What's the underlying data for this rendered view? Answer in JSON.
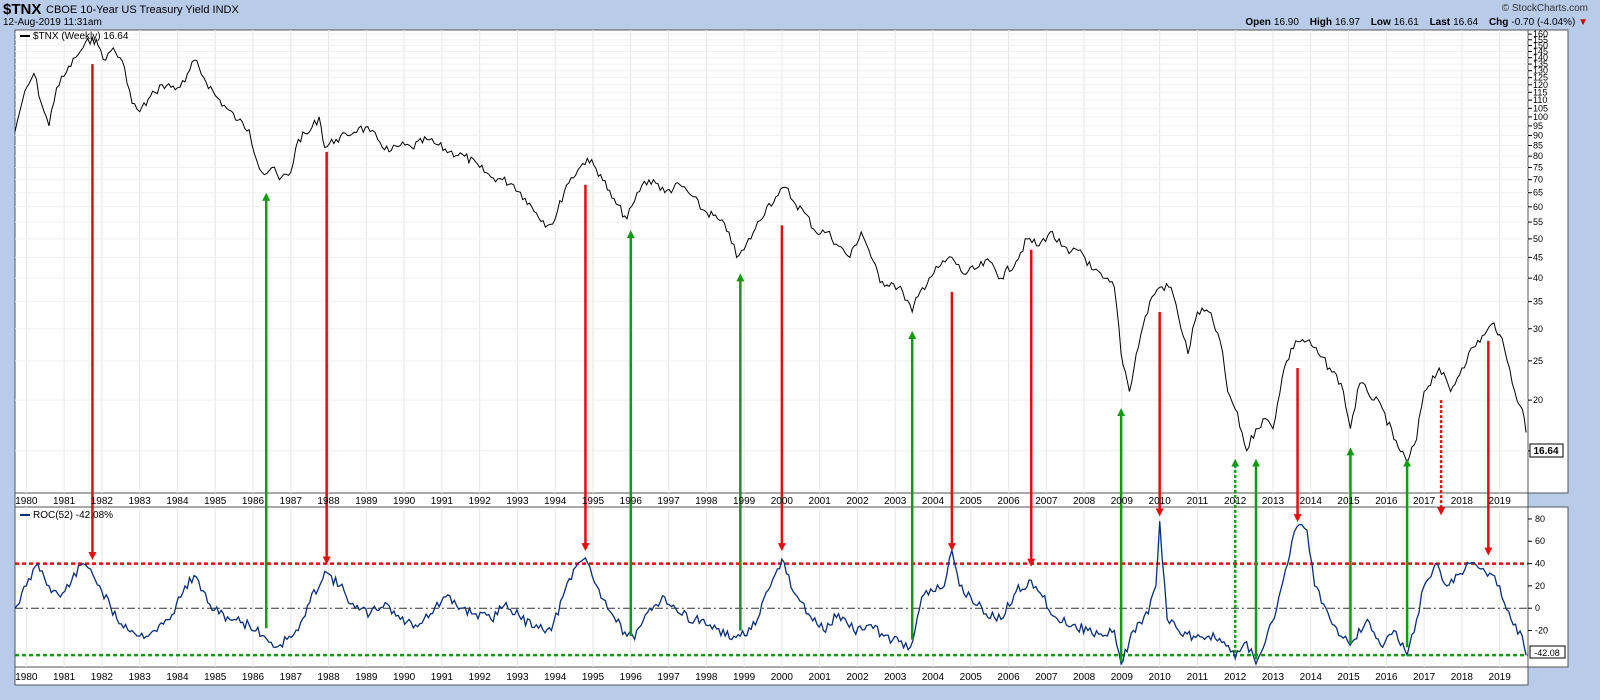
{
  "header": {
    "symbol": "$TNX",
    "name": "CBOE 10-Year US Treasury Yield",
    "exchange": "INDX",
    "date": "12-Aug-2019 11:31am",
    "brand": "© StockCharts.com",
    "open_label": "Open",
    "open": "16.90",
    "high_label": "High",
    "high": "16.97",
    "low_label": "Low",
    "low": "16.61",
    "last_label": "Last",
    "last": "16.64",
    "chg_label": "Chg",
    "chg": "-0.70 (-4.04%)",
    "chg_arrow": "▼"
  },
  "colors": {
    "price_line": "#000000",
    "roc_line": "#0a2e78",
    "red_arrow": "#e01010",
    "green_arrow": "#129a12",
    "upper_band": "#e01010",
    "lower_band": "#129a12"
  },
  "chart_data": [
    {
      "type": "line",
      "legend": "$TNX (Weekly) 16.64",
      "last_value_label": "16.64",
      "scale": "log",
      "ylim": [
        12,
        162
      ],
      "x_range": [
        1979.7,
        2019.75
      ],
      "yticks": [
        15,
        20,
        25,
        30,
        35,
        40,
        45,
        50,
        55,
        60,
        65,
        70,
        75,
        80,
        85,
        90,
        95,
        100,
        105,
        110,
        115,
        120,
        125,
        130,
        135,
        140,
        145,
        150,
        155,
        160
      ],
      "xtick_labels": [
        "1980",
        "1981",
        "1982",
        "1983",
        "1984",
        "1985",
        "1986",
        "1987",
        "1988",
        "1989",
        "1990",
        "1991",
        "1992",
        "1993",
        "1994",
        "1995",
        "1996",
        "1997",
        "1998",
        "1999",
        "2000",
        "2001",
        "2002",
        "2003",
        "2004",
        "2005",
        "2006",
        "2007",
        "2008",
        "2009",
        "2010",
        "2011",
        "2012",
        "2013",
        "2014",
        "2015",
        "2016",
        "2017",
        "2018",
        "2019"
      ],
      "series": [
        {
          "x": [
            1979.7,
            1979.9,
            1980.2,
            1980.4,
            1980.6,
            1980.8,
            1981.0,
            1981.3,
            1981.5,
            1981.75,
            1981.9,
            1982.1,
            1982.3,
            1982.6,
            1982.8,
            1983.0,
            1983.4,
            1983.6,
            1984.0,
            1984.2,
            1984.45,
            1984.7,
            1985.0,
            1985.3,
            1985.6,
            1985.9,
            1986.1,
            1986.3,
            1986.5,
            1986.7,
            1987.0,
            1987.2,
            1987.5,
            1987.75,
            1987.9,
            1988.2,
            1988.5,
            1988.8,
            1989.1,
            1989.3,
            1989.6,
            1989.9,
            1990.2,
            1990.6,
            1990.8,
            1991.2,
            1991.6,
            1992.0,
            1992.3,
            1992.6,
            1992.9,
            1993.2,
            1993.5,
            1993.8,
            1994.0,
            1994.3,
            1994.6,
            1994.85,
            1995.2,
            1995.5,
            1995.9,
            1996.1,
            1996.3,
            1996.6,
            1996.9,
            1997.3,
            1997.6,
            1997.9,
            1998.3,
            1998.6,
            1998.8,
            1999.0,
            1999.3,
            1999.6,
            1999.9,
            2000.1,
            2000.3,
            2000.6,
            2000.9,
            2001.2,
            2001.5,
            2001.8,
            2002.1,
            2002.3,
            2002.6,
            2002.9,
            2003.2,
            2003.45,
            2003.6,
            2003.9,
            2004.2,
            2004.5,
            2004.8,
            2005.1,
            2005.5,
            2005.8,
            2006.2,
            2006.5,
            2006.8,
            2007.1,
            2007.4,
            2007.6,
            2007.9,
            2008.2,
            2008.5,
            2008.8,
            2008.98,
            2009.2,
            2009.5,
            2009.8,
            2010.0,
            2010.3,
            2010.5,
            2010.75,
            2011.0,
            2011.3,
            2011.6,
            2011.8,
            2012.0,
            2012.3,
            2012.55,
            2012.8,
            2013.0,
            2013.3,
            2013.6,
            2013.9,
            2014.2,
            2014.5,
            2014.8,
            2015.05,
            2015.3,
            2015.5,
            2015.9,
            2016.2,
            2016.55,
            2016.8,
            2017.0,
            2017.4,
            2017.7,
            2018.0,
            2018.3,
            2018.6,
            2018.85,
            2019.0,
            2019.2,
            2019.4,
            2019.6,
            2019.7
          ],
          "y": [
            92,
            110,
            128,
            108,
            95,
            118,
            126,
            140,
            148,
            157,
            150,
            138,
            148,
            132,
            108,
            103,
            115,
            120,
            118,
            122,
            138,
            125,
            113,
            105,
            98,
            93,
            78,
            72,
            75,
            70,
            73,
            88,
            92,
            100,
            84,
            88,
            90,
            94,
            92,
            88,
            82,
            85,
            84,
            88,
            86,
            82,
            80,
            75,
            71,
            70,
            68,
            63,
            58,
            54,
            56,
            68,
            74,
            79,
            72,
            63,
            56,
            62,
            68,
            70,
            65,
            68,
            64,
            59,
            56,
            52,
            45,
            47,
            53,
            60,
            64,
            67,
            62,
            58,
            52,
            52,
            48,
            45,
            52,
            47,
            39,
            39,
            37,
            33,
            36,
            40,
            43,
            45,
            41,
            42,
            44,
            40,
            44,
            50,
            48,
            52,
            48,
            46,
            47,
            42,
            40,
            38,
            26,
            21,
            29,
            36,
            38,
            38,
            32,
            26,
            33,
            33,
            28,
            21,
            19,
            15,
            17,
            18,
            17,
            24,
            28,
            28,
            26,
            24,
            22,
            17,
            22,
            21,
            19,
            16,
            14,
            16,
            21,
            24,
            21,
            24,
            27,
            29,
            31,
            29,
            25,
            21,
            19,
            16.64
          ]
        }
      ]
    },
    {
      "type": "line",
      "legend": "ROC(52) -42.08%",
      "last_value_label": "-42.08",
      "ylim": [
        -50,
        88
      ],
      "yticks": [
        -20,
        0,
        20,
        40,
        60,
        80
      ],
      "reference_lines": [
        40,
        0,
        -42
      ],
      "x_range": [
        1979.7,
        2019.75
      ],
      "series": [
        {
          "x": [
            1979.7,
            1980.0,
            1980.3,
            1980.6,
            1980.9,
            1981.2,
            1981.5,
            1981.7,
            1982.0,
            1982.4,
            1982.8,
            1983.0,
            1983.4,
            1983.8,
            1984.2,
            1984.5,
            1984.8,
            1985.1,
            1985.5,
            1985.9,
            1986.3,
            1986.6,
            1986.9,
            1987.2,
            1987.5,
            1987.9,
            1988.3,
            1988.7,
            1989.1,
            1989.5,
            1989.9,
            1990.3,
            1990.7,
            1991.1,
            1991.5,
            1991.9,
            1992.3,
            1992.7,
            1993.1,
            1993.5,
            1993.9,
            1994.2,
            1994.6,
            1994.8,
            1995.1,
            1995.5,
            1995.9,
            1996.1,
            1996.5,
            1996.9,
            1997.3,
            1997.7,
            1998.1,
            1998.5,
            1998.9,
            1999.3,
            1999.7,
            2000.0,
            2000.3,
            2000.7,
            2001.1,
            2001.5,
            2001.9,
            2002.3,
            2002.7,
            2003.1,
            2003.4,
            2003.7,
            2004.0,
            2004.3,
            2004.5,
            2004.7,
            2005.0,
            2005.4,
            2005.8,
            2006.2,
            2006.6,
            2006.9,
            2007.3,
            2007.7,
            2008.1,
            2008.5,
            2008.8,
            2008.98,
            2009.3,
            2009.7,
            2009.9,
            2010.0,
            2010.2,
            2010.5,
            2010.9,
            2011.3,
            2011.7,
            2012.0,
            2012.3,
            2012.55,
            2012.8,
            2013.1,
            2013.5,
            2013.7,
            2013.9,
            2014.1,
            2014.4,
            2014.8,
            2015.1,
            2015.5,
            2015.9,
            2016.2,
            2016.55,
            2016.8,
            2017.0,
            2017.3,
            2017.6,
            2017.9,
            2018.2,
            2018.5,
            2018.8,
            2019.0,
            2019.3,
            2019.6,
            2019.7
          ],
          "y": [
            0,
            20,
            40,
            20,
            10,
            25,
            40,
            35,
            15,
            -10,
            -20,
            -25,
            -20,
            -10,
            20,
            28,
            5,
            -5,
            -10,
            -15,
            -25,
            -35,
            -28,
            -20,
            5,
            33,
            20,
            0,
            -5,
            5,
            -10,
            -15,
            -5,
            10,
            0,
            -5,
            -10,
            5,
            -10,
            -15,
            -20,
            10,
            40,
            45,
            20,
            -5,
            -25,
            -28,
            0,
            10,
            -5,
            -10,
            -15,
            -25,
            -25,
            -15,
            20,
            44,
            15,
            -5,
            -20,
            -5,
            -20,
            -15,
            -25,
            -30,
            -35,
            10,
            15,
            20,
            52,
            20,
            10,
            -5,
            -10,
            15,
            25,
            10,
            -10,
            -15,
            -20,
            -25,
            -20,
            -50,
            -20,
            -5,
            20,
            78,
            -10,
            -20,
            -25,
            -25,
            -30,
            -45,
            -30,
            -50,
            -30,
            0,
            60,
            75,
            70,
            20,
            0,
            -25,
            -30,
            -10,
            -35,
            -20,
            -42,
            -10,
            20,
            40,
            20,
            30,
            40,
            35,
            30,
            20,
            -10,
            -25,
            -42.08
          ]
        }
      ]
    }
  ]
}
